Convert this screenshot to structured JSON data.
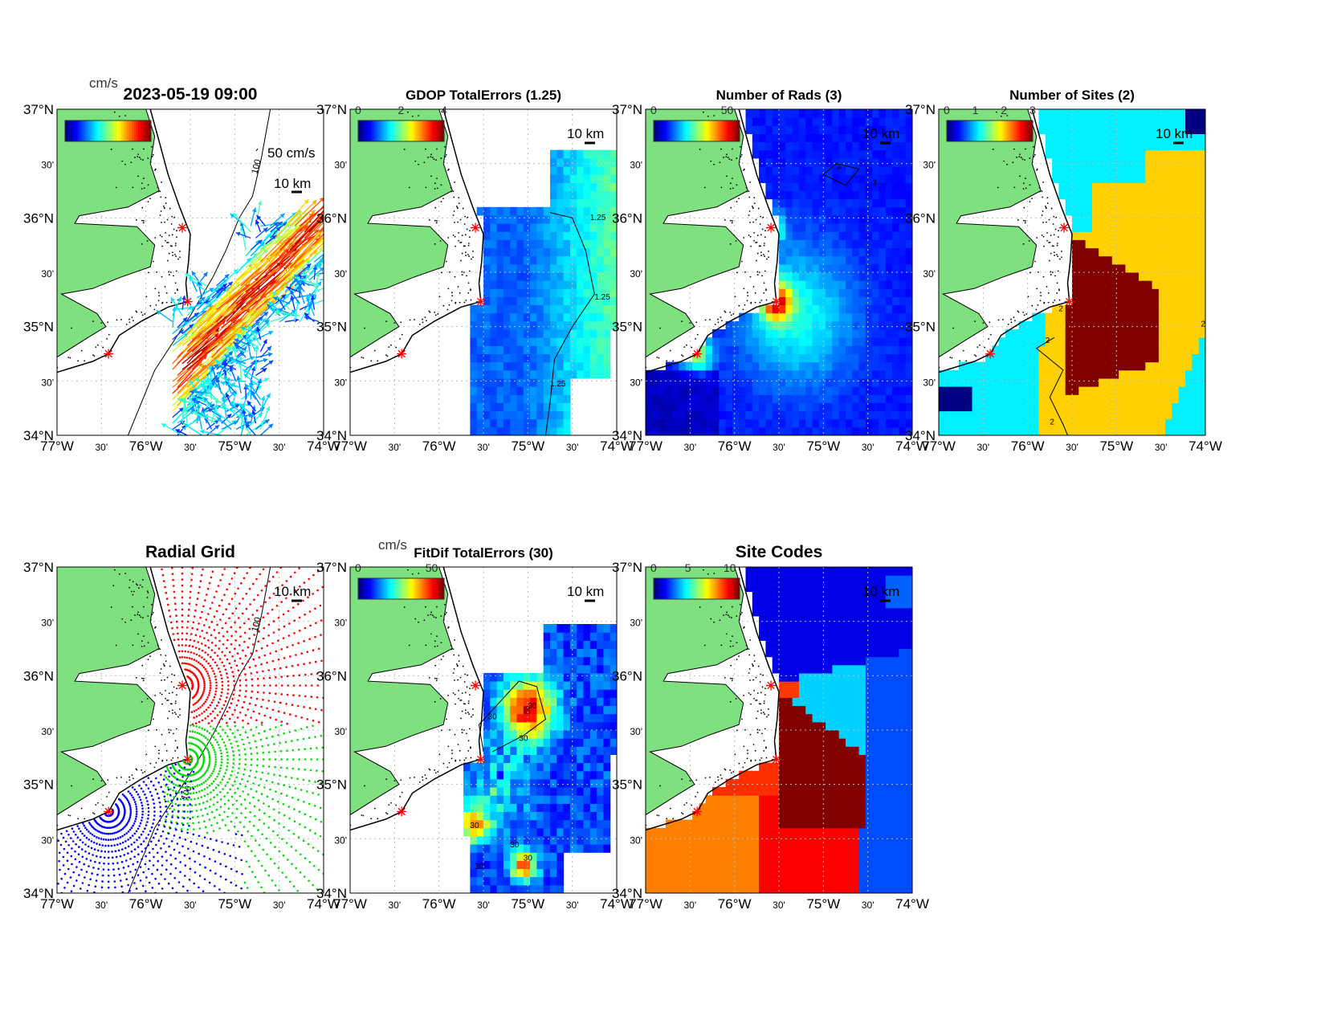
{
  "figure": {
    "timestamp": "2023-05-19 09:00",
    "vector_unit": "cm/s",
    "vector_scale_label": "50 cm/s",
    "isobath_label": "100"
  },
  "axes": {
    "lon_range": [
      -77,
      -74
    ],
    "lat_range": [
      34,
      37
    ],
    "lat_tick_labels": [
      "37°N",
      "30'",
      "36°N",
      "30'",
      "35°N",
      "30'",
      "34°N"
    ],
    "lon_tick_labels": [
      "77°W",
      "30'",
      "76°W",
      "30'",
      "75°W",
      "30'",
      "74°W"
    ],
    "grid": true
  },
  "land_color": "#7fe07f",
  "sites": [
    {
      "lon": -75.59,
      "lat": 35.91,
      "color": "#ff0000",
      "marker": "asterisk"
    },
    {
      "lon": -75.53,
      "lat": 35.23,
      "color": "#ff0000",
      "marker": "asterisk"
    },
    {
      "lon": -76.42,
      "lat": 34.75,
      "color": "#ff0000",
      "marker": "asterisk"
    }
  ],
  "panels": [
    {
      "id": "total-vectors",
      "title": "2023-05-19 09:00",
      "colorbar": {
        "colormap": "jet",
        "ticks": [],
        "unit": "cm/s"
      },
      "scale_label": "10 km",
      "contour_label": ""
    },
    {
      "id": "gdop-total-errors",
      "title": "GDOP TotalErrors (1.25)",
      "colorbar": {
        "colormap": "jet",
        "ticks": [
          "0",
          "2",
          "4"
        ],
        "unit": ""
      },
      "scale_label": "10 km",
      "contour_label": "1.25"
    },
    {
      "id": "number-of-rads",
      "title": "Number of Rads (3)",
      "colorbar": {
        "colormap": "jet",
        "ticks": [
          "0",
          "50"
        ],
        "unit": ""
      },
      "scale_label": "10 km",
      "contour_label": "3"
    },
    {
      "id": "number-of-sites",
      "title": "Number of Sites (2)",
      "colorbar": {
        "colormap": "jet",
        "ticks": [
          "0",
          "1",
          "2",
          "3"
        ],
        "unit": ""
      },
      "scale_label": "10 km",
      "contour_label": "2"
    },
    {
      "id": "radial-grid",
      "title": "Radial Grid",
      "colorbar": null,
      "scale_label": "10 km",
      "contour_label": ""
    },
    {
      "id": "fitdif-total-errors",
      "title": "FitDif TotalErrors (30)",
      "colorbar": {
        "colormap": "jet",
        "ticks": [
          "0",
          "50"
        ],
        "unit": "cm/s"
      },
      "scale_label": "10 km",
      "contour_label": "30"
    },
    {
      "id": "site-codes",
      "title": "Site Codes",
      "colorbar": {
        "colormap": "jet",
        "ticks": [
          "0",
          "5",
          "10"
        ],
        "unit": ""
      },
      "scale_label": "10 km",
      "contour_label": ""
    }
  ],
  "radial_grid_colors": [
    "#ff0000",
    "#00dd00",
    "#0000ff"
  ]
}
